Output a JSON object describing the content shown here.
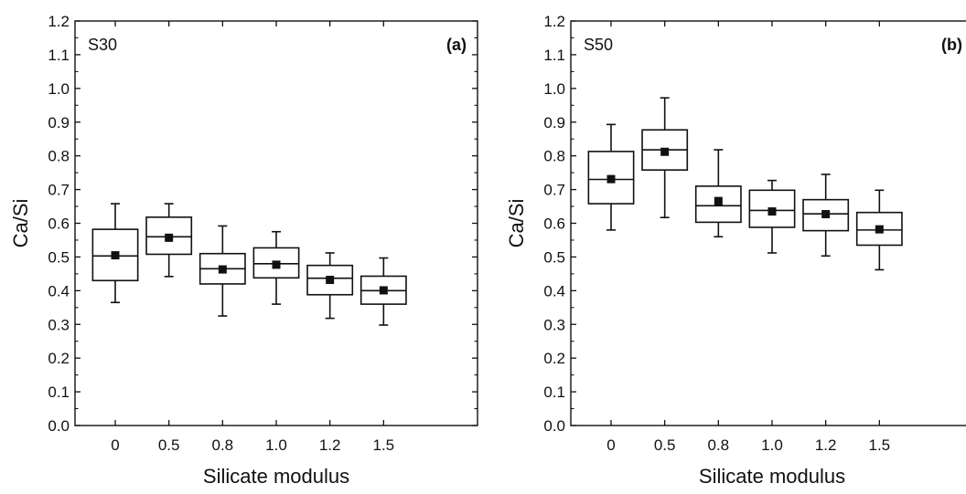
{
  "chart_data": [
    {
      "type": "box",
      "panel_label": "(a)",
      "annotation": "S30",
      "xlabel": "Silicate modulus",
      "ylabel": "Ca/Si",
      "ylim": [
        0,
        1.2
      ],
      "y_ticks": [
        "0.0",
        "0.1",
        "0.2",
        "0.3",
        "0.4",
        "0.5",
        "0.6",
        "0.7",
        "0.8",
        "0.9",
        "1.0",
        "1.1",
        "1.2"
      ],
      "y_tick_values": [
        0,
        0.1,
        0.2,
        0.3,
        0.4,
        0.5,
        0.6,
        0.7,
        0.8,
        0.9,
        1.0,
        1.1,
        1.2
      ],
      "categories": [
        "0",
        "0.5",
        "0.8",
        "1.0",
        "1.2",
        "1.5"
      ],
      "boxes": [
        {
          "min": 0.365,
          "q1": 0.43,
          "median": 0.503,
          "q3": 0.582,
          "max": 0.658,
          "mean": 0.505
        },
        {
          "min": 0.442,
          "q1": 0.508,
          "median": 0.56,
          "q3": 0.618,
          "max": 0.658,
          "mean": 0.557
        },
        {
          "min": 0.325,
          "q1": 0.42,
          "median": 0.465,
          "q3": 0.51,
          "max": 0.592,
          "mean": 0.463
        },
        {
          "min": 0.36,
          "q1": 0.438,
          "median": 0.48,
          "q3": 0.527,
          "max": 0.575,
          "mean": 0.477
        },
        {
          "min": 0.318,
          "q1": 0.388,
          "median": 0.437,
          "q3": 0.475,
          "max": 0.512,
          "mean": 0.432
        },
        {
          "min": 0.298,
          "q1": 0.36,
          "median": 0.4,
          "q3": 0.443,
          "max": 0.497,
          "mean": 0.401
        }
      ]
    },
    {
      "type": "box",
      "panel_label": "(b)",
      "annotation": "S50",
      "xlabel": "Silicate modulus",
      "ylabel": "Ca/Si",
      "ylim": [
        0,
        1.2
      ],
      "y_ticks": [
        "0.0",
        "0.1",
        "0.2",
        "0.3",
        "0.4",
        "0.5",
        "0.6",
        "0.7",
        "0.8",
        "0.9",
        "1.0",
        "1.1",
        "1.2"
      ],
      "y_tick_values": [
        0,
        0.1,
        0.2,
        0.3,
        0.4,
        0.5,
        0.6,
        0.7,
        0.8,
        0.9,
        1.0,
        1.1,
        1.2
      ],
      "categories": [
        "0",
        "0.5",
        "0.8",
        "1.0",
        "1.2",
        "1.5"
      ],
      "boxes": [
        {
          "min": 0.58,
          "q1": 0.658,
          "median": 0.73,
          "q3": 0.813,
          "max": 0.893,
          "mean": 0.731
        },
        {
          "min": 0.617,
          "q1": 0.758,
          "median": 0.818,
          "q3": 0.877,
          "max": 0.972,
          "mean": 0.812
        },
        {
          "min": 0.56,
          "q1": 0.603,
          "median": 0.652,
          "q3": 0.71,
          "max": 0.818,
          "mean": 0.666
        },
        {
          "min": 0.512,
          "q1": 0.588,
          "median": 0.638,
          "q3": 0.698,
          "max": 0.727,
          "mean": 0.635
        },
        {
          "min": 0.503,
          "q1": 0.578,
          "median": 0.628,
          "q3": 0.67,
          "max": 0.745,
          "mean": 0.627
        },
        {
          "min": 0.462,
          "q1": 0.535,
          "median": 0.58,
          "q3": 0.632,
          "max": 0.698,
          "mean": 0.582
        }
      ]
    }
  ]
}
